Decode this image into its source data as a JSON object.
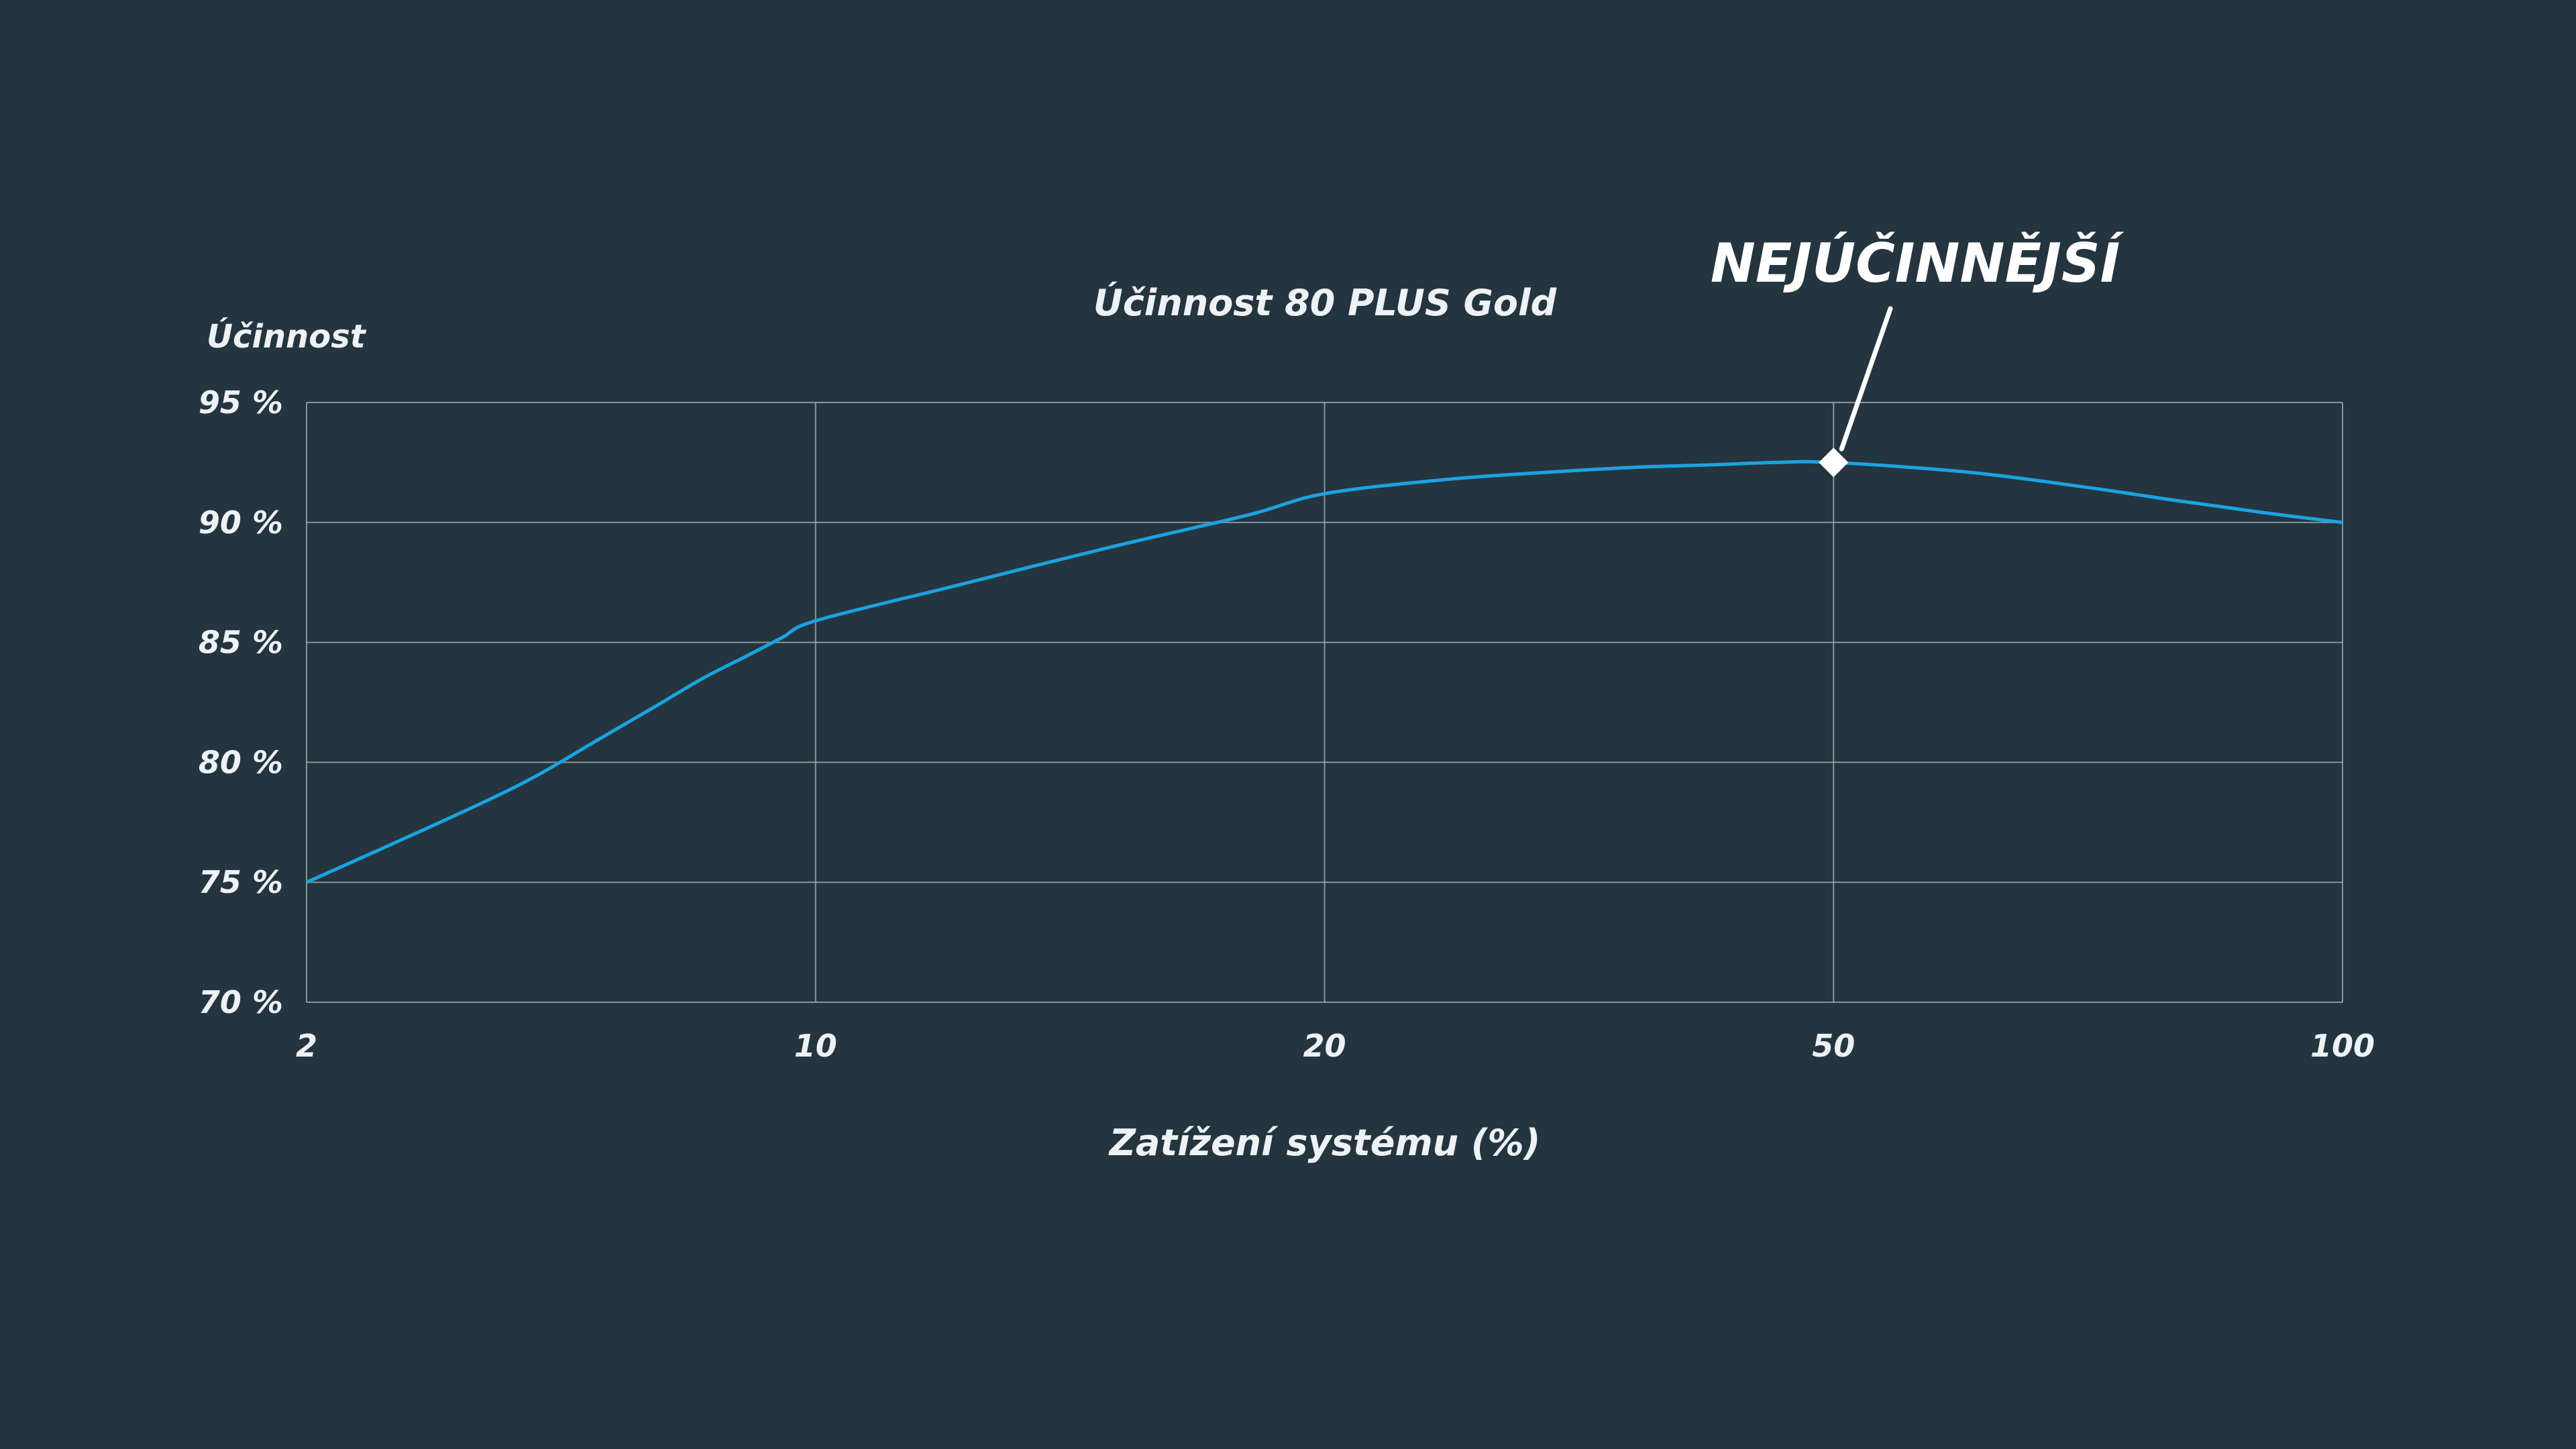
{
  "chart_data": {
    "type": "line",
    "title": "Účinnost 80 PLUS Gold",
    "xlabel": "Zatížení systému (%)",
    "ylabel": "Účinnost",
    "x_tick_labels": [
      "2",
      "10",
      "20",
      "50",
      "100"
    ],
    "y_tick_labels": [
      "95 %",
      "90 %",
      "85 %",
      "80 %",
      "75 %",
      "70 %"
    ],
    "y_ticks": [
      95,
      90,
      85,
      80,
      75,
      70
    ],
    "ylim": [
      70,
      95
    ],
    "grid": true,
    "series": [
      {
        "color": "#1aa3e0",
        "x": [
          2,
          3,
          4,
          5,
          6,
          7,
          8,
          9,
          10,
          12,
          15,
          18,
          20,
          25,
          30,
          35,
          40,
          45,
          50,
          60,
          70,
          80,
          90,
          100
        ],
        "y": [
          75.0,
          77.4,
          79.2,
          80.9,
          82.3,
          83.5,
          84.4,
          85.2,
          85.9,
          87.3,
          89.0,
          90.3,
          91.2,
          91.8,
          92.1,
          92.3,
          92.4,
          92.5,
          92.5,
          92.1,
          91.5,
          90.9,
          90.4,
          90.0
        ]
      }
    ],
    "annotation": {
      "text": "NEJÚČINNĚJŠÍ",
      "x": 50,
      "y": 92.5,
      "marker": "diamond"
    },
    "colors": {
      "background": "#243540",
      "grid": "#aab4bb",
      "line": "#1aa3e0",
      "text": "#eef2f5"
    }
  }
}
